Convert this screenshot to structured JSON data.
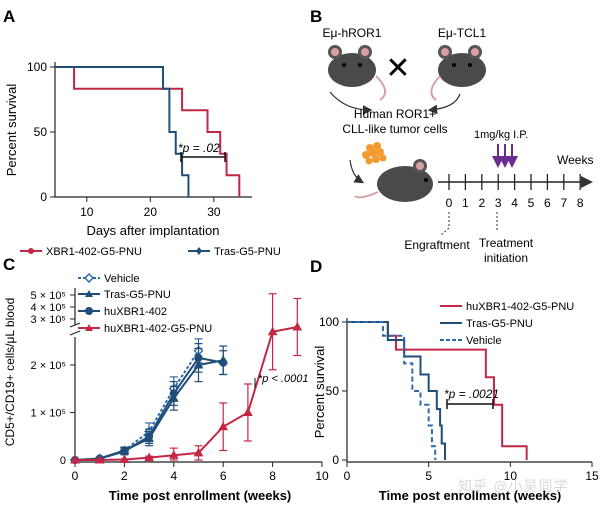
{
  "panels": {
    "A": "A",
    "B": "B",
    "C": "C",
    "D": "D"
  },
  "colors": {
    "red": "#c42745",
    "navy": "#1f4e79",
    "dashblue": "#2f6aa8",
    "purple": "#6a2c91",
    "axis": "#222222"
  },
  "watermark": "知乎 @小吴同学",
  "chart_data": [
    {
      "panel": "A",
      "type": "line",
      "subtype": "kaplan-meier",
      "xlabel": "Days after implantation",
      "ylabel": "Percent survival",
      "xlim": [
        5,
        36
      ],
      "ylim": [
        0,
        100
      ],
      "xticks": [
        10,
        20,
        30
      ],
      "yticks": [
        0,
        50,
        100
      ],
      "annotation": "*p = .02",
      "series": [
        {
          "name": "XBR1-402-G5-PNU",
          "color": "#c42745",
          "marker": "circle",
          "steps": [
            [
              5,
              100
            ],
            [
              8,
              100
            ],
            [
              8,
              83.3
            ],
            [
              25,
              83.3
            ],
            [
              25,
              66.7
            ],
            [
              29,
              66.7
            ],
            [
              29,
              50
            ],
            [
              31,
              50
            ],
            [
              31,
              33.3
            ],
            [
              32,
              33.3
            ],
            [
              32,
              16.7
            ],
            [
              34,
              16.7
            ],
            [
              34,
              0
            ]
          ]
        },
        {
          "name": "Tras-G5-PNU",
          "color": "#1f4e79",
          "marker": "diamond",
          "steps": [
            [
              5,
              100
            ],
            [
              22,
              100
            ],
            [
              22,
              83.3
            ],
            [
              23,
              83.3
            ],
            [
              23,
              50
            ],
            [
              24,
              50
            ],
            [
              24,
              33.3
            ],
            [
              25,
              33.3
            ],
            [
              25,
              16.7
            ],
            [
              26,
              16.7
            ],
            [
              26,
              0
            ]
          ]
        }
      ]
    },
    {
      "panel": "B",
      "type": "diagram",
      "parent1": "Eμ-hROR1",
      "cross": "✕",
      "parent2": "Eμ-TCL1",
      "tumor_label_1": "Human ROR1+",
      "tumor_label_2": "CLL-like tumor cells",
      "dose": "1mg/kg I.P.",
      "weeks_label": "Weeks",
      "timeline_ticks": [
        "0",
        "1",
        "2",
        "3",
        "4",
        "5",
        "6",
        "7",
        "8"
      ],
      "engraftment": "Engraftment",
      "treatment_1": "Treatment",
      "treatment_2": "initiation"
    },
    {
      "panel": "C",
      "type": "line",
      "xlabel": "Time post enrollment (weeks)",
      "ylabel": "CD5+/CD19+ cells/μL blood",
      "xlim": [
        0,
        10
      ],
      "ylim_lower": [
        0,
        260000
      ],
      "yticks_lower": [
        "0",
        "1 × 10⁵",
        "2 × 10⁵"
      ],
      "yticks_upper": [
        "5 × 10⁵",
        "4 × 10⁵",
        "3 × 10⁵"
      ],
      "xticks": [
        0,
        2,
        4,
        6,
        8,
        10
      ],
      "annotation": "*p < .0001",
      "series": [
        {
          "name": "Vehicle",
          "color": "#2f6aa8",
          "marker": "diamond",
          "dashed": true,
          "x": [
            0,
            1,
            2,
            3,
            4,
            5
          ],
          "y": [
            0,
            3000,
            20000,
            60000,
            150000,
            230000
          ],
          "err": [
            0,
            2000,
            7000,
            18000,
            25000,
            25000
          ]
        },
        {
          "name": "Tras-G5-PNU",
          "color": "#1f4e79",
          "marker": "triangle",
          "dashed": false,
          "x": [
            0,
            1,
            2,
            3,
            4,
            5,
            6
          ],
          "y": [
            0,
            3000,
            20000,
            45000,
            130000,
            200000,
            210000
          ],
          "err": [
            0,
            2000,
            7000,
            15000,
            25000,
            35000,
            30000
          ]
        },
        {
          "name": "huXBR1-402",
          "color": "#1f4e79",
          "marker": "circle",
          "dashed": false,
          "x": [
            0,
            1,
            2,
            3,
            4,
            5,
            6
          ],
          "y": [
            0,
            3000,
            18000,
            50000,
            140000,
            215000,
            205000
          ],
          "err": [
            0,
            2000,
            7000,
            15000,
            25000,
            30000,
            25000
          ]
        },
        {
          "name": "huXBR1-402-G5-PNU",
          "color": "#c42745",
          "marker": "triangle",
          "dashed": false,
          "x": [
            0,
            1,
            2,
            3,
            4,
            5,
            6,
            7,
            8,
            9
          ],
          "y": [
            0,
            0,
            1000,
            5000,
            10000,
            15000,
            70000,
            100000,
            270000,
            280000
          ],
          "err": [
            0,
            0,
            1000,
            3000,
            15000,
            15000,
            50000,
            60000,
            80000,
            60000
          ]
        }
      ]
    },
    {
      "panel": "D",
      "type": "line",
      "subtype": "kaplan-meier",
      "xlabel": "Time post enrollment (weeks)",
      "ylabel": "Percent survival",
      "xlim": [
        0,
        15
      ],
      "ylim": [
        0,
        100
      ],
      "xticks": [
        0,
        5,
        10,
        15
      ],
      "yticks": [
        0,
        50,
        100
      ],
      "annotation": "*p = .0021",
      "series": [
        {
          "name": "huXBR1-402-G5-PNU",
          "color": "#c42745",
          "dashed": false,
          "steps": [
            [
              0,
              100
            ],
            [
              2.5,
              100
            ],
            [
              2.5,
              90
            ],
            [
              3,
              90
            ],
            [
              3,
              80
            ],
            [
              8.5,
              80
            ],
            [
              8.5,
              60
            ],
            [
              9,
              60
            ],
            [
              9,
              40
            ],
            [
              9.5,
              40
            ],
            [
              9.5,
              10
            ],
            [
              11,
              10
            ],
            [
              11,
              0
            ]
          ]
        },
        {
          "name": "Tras-G5-PNU",
          "color": "#1f4e79",
          "dashed": false,
          "steps": [
            [
              0,
              100
            ],
            [
              2.5,
              100
            ],
            [
              2.5,
              87
            ],
            [
              3.5,
              87
            ],
            [
              3.5,
              75
            ],
            [
              4.5,
              75
            ],
            [
              4.5,
              62
            ],
            [
              5,
              62
            ],
            [
              5,
              50
            ],
            [
              5.5,
              50
            ],
            [
              5.5,
              37
            ],
            [
              5.7,
              37
            ],
            [
              5.7,
              25
            ],
            [
              5.8,
              25
            ],
            [
              5.8,
              12
            ],
            [
              6,
              12
            ],
            [
              6,
              0
            ]
          ]
        },
        {
          "name": "Vehicle",
          "color": "#2f6aa8",
          "dashed": true,
          "steps": [
            [
              0,
              100
            ],
            [
              2.2,
              100
            ],
            [
              2.2,
              90
            ],
            [
              3.5,
              90
            ],
            [
              3.5,
              70
            ],
            [
              4,
              70
            ],
            [
              4,
              50
            ],
            [
              4.5,
              50
            ],
            [
              4.5,
              40
            ],
            [
              5,
              40
            ],
            [
              5,
              25
            ],
            [
              5.2,
              25
            ],
            [
              5.2,
              10
            ],
            [
              5.4,
              10
            ],
            [
              5.4,
              0
            ]
          ]
        }
      ]
    }
  ]
}
